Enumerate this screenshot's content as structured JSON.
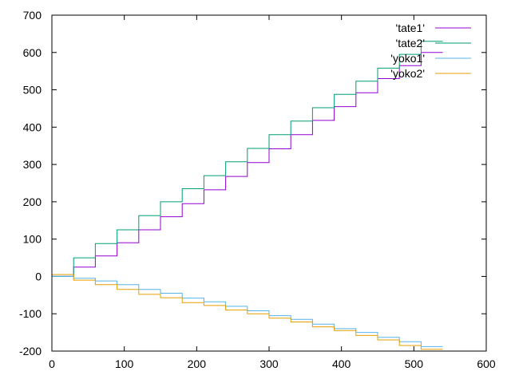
{
  "chart_data": {
    "type": "line",
    "xlim": [
      0,
      600
    ],
    "ylim": [
      -200,
      700
    ],
    "xticks": [
      0,
      100,
      200,
      300,
      400,
      500,
      600
    ],
    "yticks": [
      -200,
      -100,
      0,
      100,
      200,
      300,
      400,
      500,
      600,
      700
    ],
    "grid": false,
    "legend_position": "top-right",
    "series": [
      {
        "name": "'tate1'",
        "color": "#9400d3",
        "x": [
          0,
          30,
          30,
          60,
          60,
          90,
          90,
          120,
          120,
          150,
          150,
          180,
          180,
          210,
          210,
          240,
          240,
          270,
          270,
          300,
          300,
          330,
          330,
          360,
          360,
          390,
          390,
          420,
          420,
          450,
          450,
          480,
          480,
          510,
          510,
          540
        ],
        "y": [
          0,
          0,
          25,
          25,
          55,
          55,
          90,
          90,
          125,
          125,
          160,
          160,
          195,
          195,
          232,
          232,
          268,
          268,
          305,
          305,
          342,
          342,
          380,
          380,
          418,
          418,
          455,
          455,
          492,
          492,
          530,
          530,
          565,
          565,
          600,
          600
        ]
      },
      {
        "name": "'tate2'",
        "color": "#009e73",
        "x": [
          0,
          30,
          30,
          60,
          60,
          90,
          90,
          120,
          120,
          150,
          150,
          180,
          180,
          210,
          210,
          240,
          240,
          270,
          270,
          300,
          300,
          330,
          330,
          360,
          360,
          390,
          390,
          420,
          420,
          450,
          450,
          480,
          480,
          510,
          510,
          540
        ],
        "y": [
          0,
          0,
          50,
          50,
          88,
          88,
          125,
          125,
          163,
          163,
          200,
          200,
          235,
          235,
          270,
          270,
          307,
          307,
          343,
          343,
          380,
          380,
          416,
          416,
          452,
          452,
          488,
          488,
          523,
          523,
          558,
          558,
          595,
          595,
          630,
          630
        ]
      },
      {
        "name": "'yoko1'",
        "color": "#56b4e9",
        "x": [
          0,
          30,
          30,
          60,
          60,
          90,
          90,
          120,
          120,
          150,
          150,
          180,
          180,
          210,
          210,
          240,
          240,
          270,
          270,
          300,
          300,
          330,
          330,
          360,
          360,
          390,
          390,
          420,
          420,
          450,
          450,
          480,
          480,
          510,
          510,
          540
        ],
        "y": [
          0,
          0,
          -5,
          -5,
          -12,
          -12,
          -22,
          -22,
          -35,
          -35,
          -45,
          -45,
          -58,
          -58,
          -68,
          -68,
          -80,
          -80,
          -92,
          -92,
          -105,
          -105,
          -115,
          -115,
          -128,
          -128,
          -140,
          -140,
          -150,
          -150,
          -163,
          -163,
          -175,
          -175,
          -188,
          -188
        ]
      },
      {
        "name": "'yoko2'",
        "color": "#e69f00",
        "x": [
          0,
          30,
          30,
          60,
          60,
          90,
          90,
          120,
          120,
          150,
          150,
          180,
          180,
          210,
          210,
          240,
          240,
          270,
          270,
          300,
          300,
          330,
          330,
          360,
          360,
          390,
          390,
          420,
          420,
          450,
          450,
          480,
          480,
          510,
          510,
          540
        ],
        "y": [
          5,
          5,
          -10,
          -10,
          -22,
          -22,
          -35,
          -35,
          -48,
          -48,
          -57,
          -57,
          -70,
          -70,
          -78,
          -78,
          -90,
          -90,
          -100,
          -100,
          -112,
          -112,
          -122,
          -122,
          -135,
          -135,
          -145,
          -145,
          -158,
          -158,
          -170,
          -170,
          -185,
          -185,
          -195,
          -195
        ]
      }
    ]
  }
}
